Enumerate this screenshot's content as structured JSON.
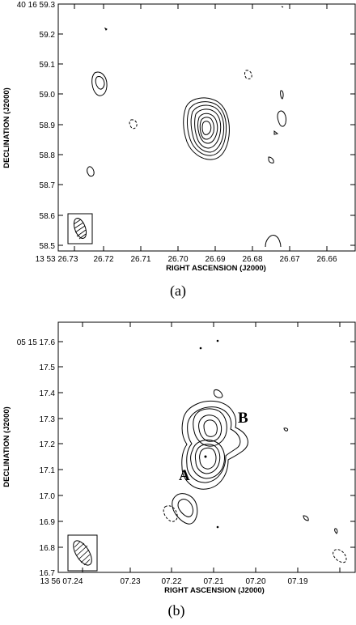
{
  "figure": {
    "caption_a": "(a)",
    "caption_b": "(b)",
    "panels": [
      {
        "ylabel": "DECLINATION (J2000)",
        "xlabel": "RIGHT ASCENSION (J2000)",
        "y_ticks": [
          "40 16 59.3",
          "59.2",
          "59.1",
          "59.0",
          "58.9",
          "58.8",
          "58.7",
          "58.6",
          "58.5"
        ],
        "x_ticks": [
          "13 53 26.73",
          "26.72",
          "26.71",
          "26.70",
          "26.69",
          "26.68",
          "26.67",
          "26.66"
        ]
      },
      {
        "ylabel": "DECLINATION (J2000)",
        "xlabel": "RIGHT ASCENSION (J2000)",
        "y_ticks": [
          "05 15 17.6",
          "17.5",
          "17.4",
          "17.3",
          "17.2",
          "17.1",
          "17.0",
          "16.9",
          "16.8",
          "16.7"
        ],
        "x_ticks": [
          "13 56 07.24",
          "07.23",
          "07.22",
          "07.21",
          "07.20",
          "07.19"
        ],
        "labels": {
          "A": "A",
          "B": "B"
        }
      }
    ]
  }
}
